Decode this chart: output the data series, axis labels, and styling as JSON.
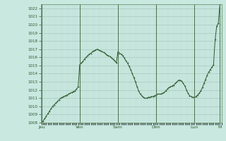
{
  "bg_color": "#c8e8e0",
  "plot_bg_color": "#c8e8e0",
  "grid_color_major": "#a8c8c0",
  "grid_color_minor": "#b8d8d0",
  "line_color": "#2d5a2d",
  "marker_color": "#2d5a2d",
  "ylim": [
    1008,
    1022.5
  ],
  "yticks": [
    1008,
    1009,
    1010,
    1011,
    1012,
    1013,
    1014,
    1015,
    1016,
    1017,
    1018,
    1019,
    1020,
    1021,
    1022
  ],
  "xtick_labels": [
    "Jeu",
    "Ven",
    "Sam",
    "Dim",
    "Lun",
    "M"
  ],
  "xtick_positions": [
    0,
    24,
    48,
    72,
    96,
    112
  ],
  "vline_positions": [
    0,
    24,
    48,
    72,
    96,
    112
  ],
  "data_x": [
    0,
    1,
    2,
    3,
    4,
    5,
    6,
    7,
    8,
    9,
    10,
    11,
    12,
    13,
    14,
    15,
    16,
    17,
    18,
    19,
    20,
    21,
    22,
    23,
    24,
    25,
    26,
    27,
    28,
    29,
    30,
    31,
    32,
    33,
    34,
    35,
    36,
    37,
    38,
    39,
    40,
    41,
    42,
    43,
    44,
    45,
    46,
    47,
    48,
    49,
    50,
    51,
    52,
    53,
    54,
    55,
    56,
    57,
    58,
    59,
    60,
    61,
    62,
    63,
    64,
    65,
    66,
    67,
    68,
    69,
    70,
    71,
    72,
    73,
    74,
    75,
    76,
    77,
    78,
    79,
    80,
    81,
    82,
    83,
    84,
    85,
    86,
    87,
    88,
    89,
    90,
    91,
    92,
    93,
    94,
    95,
    96,
    97,
    98,
    99,
    100,
    101,
    102,
    103,
    104,
    105,
    106,
    107,
    108,
    109,
    110,
    111,
    112
  ],
  "data_y": [
    1008.0,
    1008.2,
    1008.5,
    1008.8,
    1009.1,
    1009.4,
    1009.7,
    1010.0,
    1010.2,
    1010.4,
    1010.6,
    1010.8,
    1011.0,
    1011.1,
    1011.2,
    1011.3,
    1011.4,
    1011.5,
    1011.6,
    1011.7,
    1011.8,
    1011.9,
    1012.1,
    1012.4,
    1015.1,
    1015.3,
    1015.5,
    1015.8,
    1016.0,
    1016.2,
    1016.4,
    1016.5,
    1016.7,
    1016.8,
    1016.9,
    1017.0,
    1016.9,
    1016.8,
    1016.7,
    1016.6,
    1016.5,
    1016.3,
    1016.2,
    1016.1,
    1015.9,
    1015.8,
    1015.6,
    1015.3,
    1016.7,
    1016.5,
    1016.4,
    1016.2,
    1015.9,
    1015.6,
    1015.3,
    1014.9,
    1014.5,
    1014.0,
    1013.5,
    1013.0,
    1012.4,
    1011.9,
    1011.5,
    1011.3,
    1011.1,
    1011.0,
    1011.0,
    1011.1,
    1011.1,
    1011.2,
    1011.2,
    1011.3,
    1011.4,
    1011.5,
    1011.5,
    1011.5,
    1011.6,
    1011.7,
    1011.9,
    1012.1,
    1012.3,
    1012.4,
    1012.5,
    1012.6,
    1012.8,
    1013.0,
    1013.2,
    1013.2,
    1013.1,
    1012.8,
    1012.5,
    1012.0,
    1011.6,
    1011.3,
    1011.2,
    1011.1,
    1011.1,
    1011.2,
    1011.4,
    1011.6,
    1011.9,
    1012.3,
    1012.8,
    1013.3,
    1013.8,
    1014.2,
    1014.5,
    1014.8,
    1015.1,
    1018.2,
    1019.8,
    1020.2,
    1022.5
  ]
}
